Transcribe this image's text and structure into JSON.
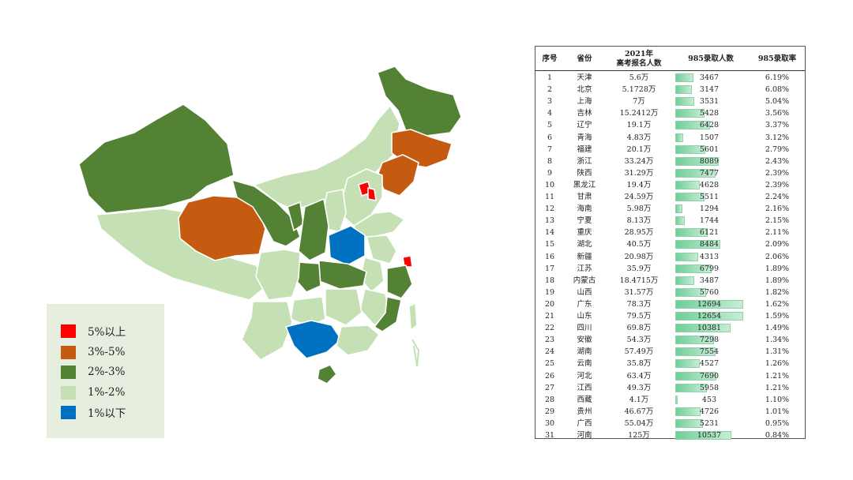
{
  "colors": {
    "above_5": "#ff0000",
    "between_3_5": "#c55a11",
    "between_2_3": "#548235",
    "between_1_2": "#c5e0b4",
    "below_1": "#0070c0"
  },
  "legend": {
    "items": [
      {
        "label": "5%以上",
        "color": "#ff0000"
      },
      {
        "label": "3%-5%",
        "color": "#c55a11"
      },
      {
        "label": "2%-3%",
        "color": "#548235"
      },
      {
        "label": "1%-2%",
        "color": "#c5e0b4"
      },
      {
        "label": "1%以下",
        "color": "#0070c0"
      }
    ]
  },
  "table": {
    "headers": {
      "rank": "序号",
      "province": "省份",
      "applicants_line1": "2021年",
      "applicants_line2": "高考报名人数",
      "admitted": "985录取人数",
      "rate": "985录取率"
    },
    "rows": [
      {
        "rank": "1",
        "province": "天津",
        "applicants": "5.6万",
        "admitted": 3467,
        "rate": "6.19%"
      },
      {
        "rank": "2",
        "province": "北京",
        "applicants": "5.1728万",
        "admitted": 3147,
        "rate": "6.08%"
      },
      {
        "rank": "3",
        "province": "上海",
        "applicants": "7万",
        "admitted": 3531,
        "rate": "5.04%"
      },
      {
        "rank": "4",
        "province": "吉林",
        "applicants": "15.2412万",
        "admitted": 5428,
        "rate": "3.56%"
      },
      {
        "rank": "5",
        "province": "辽宁",
        "applicants": "19.1万",
        "admitted": 6428,
        "rate": "3.37%"
      },
      {
        "rank": "6",
        "province": "青海",
        "applicants": "4.83万",
        "admitted": 1507,
        "rate": "3.12%"
      },
      {
        "rank": "7",
        "province": "福建",
        "applicants": "20.1万",
        "admitted": 5601,
        "rate": "2.79%"
      },
      {
        "rank": "8",
        "province": "浙江",
        "applicants": "33.24万",
        "admitted": 8089,
        "rate": "2.43%"
      },
      {
        "rank": "9",
        "province": "陕西",
        "applicants": "31.29万",
        "admitted": 7477,
        "rate": "2.39%"
      },
      {
        "rank": "10",
        "province": "黑龙江",
        "applicants": "19.4万",
        "admitted": 4628,
        "rate": "2.39%"
      },
      {
        "rank": "11",
        "province": "甘肃",
        "applicants": "24.59万",
        "admitted": 5511,
        "rate": "2.24%"
      },
      {
        "rank": "12",
        "province": "海南",
        "applicants": "5.98万",
        "admitted": 1294,
        "rate": "2.16%"
      },
      {
        "rank": "13",
        "province": "宁夏",
        "applicants": "8.13万",
        "admitted": 1744,
        "rate": "2.15%"
      },
      {
        "rank": "14",
        "province": "重庆",
        "applicants": "28.95万",
        "admitted": 6121,
        "rate": "2.11%"
      },
      {
        "rank": "15",
        "province": "湖北",
        "applicants": "40.5万",
        "admitted": 8484,
        "rate": "2.09%"
      },
      {
        "rank": "16",
        "province": "新疆",
        "applicants": "20.98万",
        "admitted": 4313,
        "rate": "2.06%"
      },
      {
        "rank": "17",
        "province": "江苏",
        "applicants": "35.9万",
        "admitted": 6799,
        "rate": "1.89%"
      },
      {
        "rank": "18",
        "province": "内蒙古",
        "applicants": "18.4715万",
        "admitted": 3487,
        "rate": "1.89%"
      },
      {
        "rank": "19",
        "province": "山西",
        "applicants": "31.57万",
        "admitted": 5760,
        "rate": "1.82%"
      },
      {
        "rank": "20",
        "province": "广东",
        "applicants": "78.3万",
        "admitted": 12694,
        "rate": "1.62%"
      },
      {
        "rank": "21",
        "province": "山东",
        "applicants": "79.5万",
        "admitted": 12654,
        "rate": "1.59%"
      },
      {
        "rank": "22",
        "province": "四川",
        "applicants": "69.8万",
        "admitted": 10381,
        "rate": "1.49%"
      },
      {
        "rank": "23",
        "province": "安徽",
        "applicants": "54.3万",
        "admitted": 7298,
        "rate": "1.34%"
      },
      {
        "rank": "24",
        "province": "湖南",
        "applicants": "57.49万",
        "admitted": 7554,
        "rate": "1.31%"
      },
      {
        "rank": "25",
        "province": "云南",
        "applicants": "35.8万",
        "admitted": 4527,
        "rate": "1.26%"
      },
      {
        "rank": "26",
        "province": "河北",
        "applicants": "63.4万",
        "admitted": 7690,
        "rate": "1.21%"
      },
      {
        "rank": "27",
        "province": "江西",
        "applicants": "49.3万",
        "admitted": 5958,
        "rate": "1.21%"
      },
      {
        "rank": "28",
        "province": "西藏",
        "applicants": "4.1万",
        "admitted": 453,
        "rate": "1.10%"
      },
      {
        "rank": "29",
        "province": "贵州",
        "applicants": "46.67万",
        "admitted": 4726,
        "rate": "1.01%"
      },
      {
        "rank": "30",
        "province": "广西",
        "applicants": "55.04万",
        "admitted": 5231,
        "rate": "0.95%"
      },
      {
        "rank": "31",
        "province": "河南",
        "applicants": "125万",
        "admitted": 10537,
        "rate": "0.84%"
      }
    ]
  }
}
